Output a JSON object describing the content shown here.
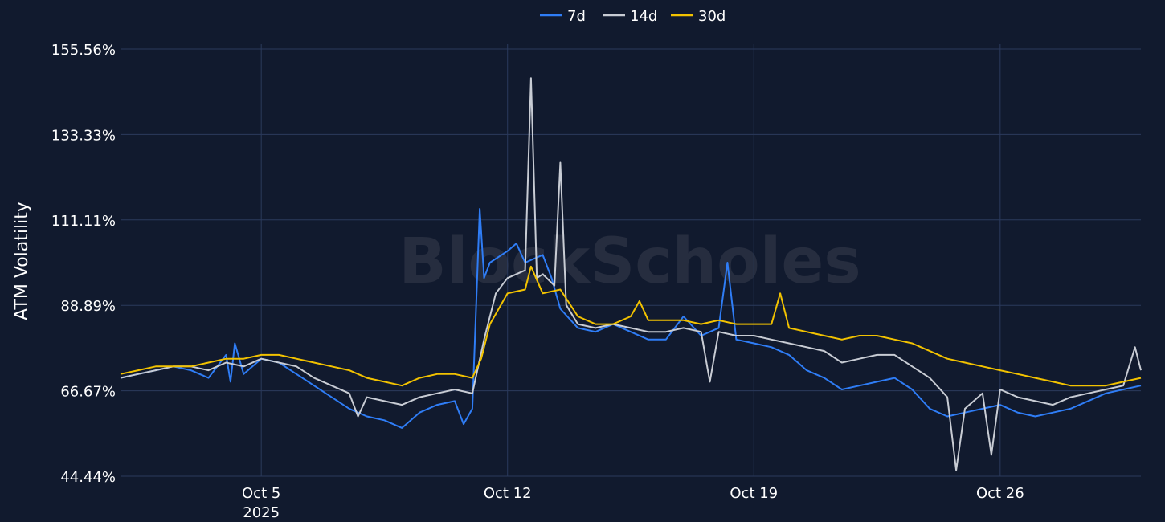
{
  "chart_data": {
    "type": "line",
    "title": "",
    "xlabel": "",
    "ylabel": "ATM Volatility",
    "watermark": "BlockScholes",
    "x_range": [
      "2025-10-01T00:00",
      "2025-10-30T00:00"
    ],
    "ylim": [
      44.44,
      155.56
    ],
    "y_ticks": [
      44.44,
      66.67,
      88.89,
      111.11,
      133.33,
      155.56
    ],
    "y_tick_labels": [
      "44.44%",
      "66.67%",
      "88.89%",
      "111.11%",
      "133.33%",
      "155.56%"
    ],
    "x_ticks": [
      {
        "date": "2025-10-05T00:00",
        "label": "Oct 5",
        "sublabel": "2025"
      },
      {
        "date": "2025-10-12T00:00",
        "label": "Oct 12",
        "sublabel": ""
      },
      {
        "date": "2025-10-19T00:00",
        "label": "Oct 19",
        "sublabel": ""
      },
      {
        "date": "2025-10-26T00:00",
        "label": "Oct 26",
        "sublabel": ""
      }
    ],
    "grid": true,
    "legend_position": "top-center",
    "series": [
      {
        "name": "7d",
        "color": "#2f7df6",
        "points": [
          [
            "2025-10-01T00:00",
            70
          ],
          [
            "2025-10-01T12:00",
            71
          ],
          [
            "2025-10-02T00:00",
            72
          ],
          [
            "2025-10-02T12:00",
            73
          ],
          [
            "2025-10-03T00:00",
            72
          ],
          [
            "2025-10-03T12:00",
            70
          ],
          [
            "2025-10-04T00:00",
            76
          ],
          [
            "2025-10-04T03:00",
            69
          ],
          [
            "2025-10-04T06:00",
            79
          ],
          [
            "2025-10-04T12:00",
            71
          ],
          [
            "2025-10-05T00:00",
            75
          ],
          [
            "2025-10-05T12:00",
            74
          ],
          [
            "2025-10-06T00:00",
            71
          ],
          [
            "2025-10-06T12:00",
            68
          ],
          [
            "2025-10-07T00:00",
            65
          ],
          [
            "2025-10-07T12:00",
            62
          ],
          [
            "2025-10-08T00:00",
            60
          ],
          [
            "2025-10-08T12:00",
            59
          ],
          [
            "2025-10-09T00:00",
            57
          ],
          [
            "2025-10-09T12:00",
            61
          ],
          [
            "2025-10-10T00:00",
            63
          ],
          [
            "2025-10-10T12:00",
            64
          ],
          [
            "2025-10-10T18:00",
            58
          ],
          [
            "2025-10-11T00:00",
            62
          ],
          [
            "2025-10-11T05:00",
            114
          ],
          [
            "2025-10-11T08:00",
            96
          ],
          [
            "2025-10-11T12:00",
            100
          ],
          [
            "2025-10-12T00:00",
            103
          ],
          [
            "2025-10-12T06:00",
            105
          ],
          [
            "2025-10-12T12:00",
            100
          ],
          [
            "2025-10-13T00:00",
            102
          ],
          [
            "2025-10-13T06:00",
            96
          ],
          [
            "2025-10-13T12:00",
            88
          ],
          [
            "2025-10-14T00:00",
            83
          ],
          [
            "2025-10-14T12:00",
            82
          ],
          [
            "2025-10-15T00:00",
            84
          ],
          [
            "2025-10-15T12:00",
            82
          ],
          [
            "2025-10-16T00:00",
            80
          ],
          [
            "2025-10-16T12:00",
            80
          ],
          [
            "2025-10-17T00:00",
            86
          ],
          [
            "2025-10-17T12:00",
            81
          ],
          [
            "2025-10-18T00:00",
            83
          ],
          [
            "2025-10-18T06:00",
            100
          ],
          [
            "2025-10-18T12:00",
            80
          ],
          [
            "2025-10-19T00:00",
            79
          ],
          [
            "2025-10-19T12:00",
            78
          ],
          [
            "2025-10-20T00:00",
            76
          ],
          [
            "2025-10-20T12:00",
            72
          ],
          [
            "2025-10-21T00:00",
            70
          ],
          [
            "2025-10-21T12:00",
            67
          ],
          [
            "2025-10-22T00:00",
            68
          ],
          [
            "2025-10-22T12:00",
            69
          ],
          [
            "2025-10-23T00:00",
            70
          ],
          [
            "2025-10-23T12:00",
            67
          ],
          [
            "2025-10-24T00:00",
            62
          ],
          [
            "2025-10-24T12:00",
            60
          ],
          [
            "2025-10-25T00:00",
            61
          ],
          [
            "2025-10-25T12:00",
            62
          ],
          [
            "2025-10-26T00:00",
            63
          ],
          [
            "2025-10-26T12:00",
            61
          ],
          [
            "2025-10-27T00:00",
            60
          ],
          [
            "2025-10-27T12:00",
            61
          ],
          [
            "2025-10-28T00:00",
            62
          ],
          [
            "2025-10-28T12:00",
            64
          ],
          [
            "2025-10-29T00:00",
            66
          ],
          [
            "2025-10-29T12:00",
            67
          ],
          [
            "2025-10-30T00:00",
            68
          ]
        ]
      },
      {
        "name": "14d",
        "color": "#c8ccd4",
        "points": [
          [
            "2025-10-01T00:00",
            70
          ],
          [
            "2025-10-01T12:00",
            71
          ],
          [
            "2025-10-02T00:00",
            72
          ],
          [
            "2025-10-02T12:00",
            73
          ],
          [
            "2025-10-03T00:00",
            73
          ],
          [
            "2025-10-03T12:00",
            72
          ],
          [
            "2025-10-04T00:00",
            74
          ],
          [
            "2025-10-04T12:00",
            73
          ],
          [
            "2025-10-05T00:00",
            75
          ],
          [
            "2025-10-05T12:00",
            74
          ],
          [
            "2025-10-06T00:00",
            73
          ],
          [
            "2025-10-06T12:00",
            70
          ],
          [
            "2025-10-07T00:00",
            68
          ],
          [
            "2025-10-07T12:00",
            66
          ],
          [
            "2025-10-07T18:00",
            60
          ],
          [
            "2025-10-08T00:00",
            65
          ],
          [
            "2025-10-08T12:00",
            64
          ],
          [
            "2025-10-09T00:00",
            63
          ],
          [
            "2025-10-09T12:00",
            65
          ],
          [
            "2025-10-10T00:00",
            66
          ],
          [
            "2025-10-10T12:00",
            67
          ],
          [
            "2025-10-11T00:00",
            66
          ],
          [
            "2025-10-11T08:00",
            80
          ],
          [
            "2025-10-11T16:00",
            92
          ],
          [
            "2025-10-12T00:00",
            96
          ],
          [
            "2025-10-12T12:00",
            98
          ],
          [
            "2025-10-12T16:00",
            148
          ],
          [
            "2025-10-12T20:00",
            96
          ],
          [
            "2025-10-13T00:00",
            97
          ],
          [
            "2025-10-13T08:00",
            94
          ],
          [
            "2025-10-13T12:00",
            126
          ],
          [
            "2025-10-13T16:00",
            89
          ],
          [
            "2025-10-14T00:00",
            84
          ],
          [
            "2025-10-14T12:00",
            83
          ],
          [
            "2025-10-15T00:00",
            84
          ],
          [
            "2025-10-15T12:00",
            83
          ],
          [
            "2025-10-16T00:00",
            82
          ],
          [
            "2025-10-16T12:00",
            82
          ],
          [
            "2025-10-17T00:00",
            83
          ],
          [
            "2025-10-17T12:00",
            82
          ],
          [
            "2025-10-17T18:00",
            69
          ],
          [
            "2025-10-18T00:00",
            82
          ],
          [
            "2025-10-18T12:00",
            81
          ],
          [
            "2025-10-19T00:00",
            81
          ],
          [
            "2025-10-19T12:00",
            80
          ],
          [
            "2025-10-20T00:00",
            79
          ],
          [
            "2025-10-20T12:00",
            78
          ],
          [
            "2025-10-21T00:00",
            77
          ],
          [
            "2025-10-21T12:00",
            74
          ],
          [
            "2025-10-22T00:00",
            75
          ],
          [
            "2025-10-22T12:00",
            76
          ],
          [
            "2025-10-23T00:00",
            76
          ],
          [
            "2025-10-23T12:00",
            73
          ],
          [
            "2025-10-24T00:00",
            70
          ],
          [
            "2025-10-24T12:00",
            65
          ],
          [
            "2025-10-24T18:00",
            46
          ],
          [
            "2025-10-25T00:00",
            62
          ],
          [
            "2025-10-25T12:00",
            66
          ],
          [
            "2025-10-25T18:00",
            50
          ],
          [
            "2025-10-26T00:00",
            67
          ],
          [
            "2025-10-26T12:00",
            65
          ],
          [
            "2025-10-27T00:00",
            64
          ],
          [
            "2025-10-27T12:00",
            63
          ],
          [
            "2025-10-28T00:00",
            65
          ],
          [
            "2025-10-28T12:00",
            66
          ],
          [
            "2025-10-29T00:00",
            67
          ],
          [
            "2025-10-29T12:00",
            68
          ],
          [
            "2025-10-29T20:00",
            78
          ],
          [
            "2025-10-30T00:00",
            72
          ]
        ]
      },
      {
        "name": "30d",
        "color": "#f2c200",
        "points": [
          [
            "2025-10-01T00:00",
            71
          ],
          [
            "2025-10-01T12:00",
            72
          ],
          [
            "2025-10-02T00:00",
            73
          ],
          [
            "2025-10-02T12:00",
            73
          ],
          [
            "2025-10-03T00:00",
            73
          ],
          [
            "2025-10-03T12:00",
            74
          ],
          [
            "2025-10-04T00:00",
            75
          ],
          [
            "2025-10-04T12:00",
            75
          ],
          [
            "2025-10-05T00:00",
            76
          ],
          [
            "2025-10-05T12:00",
            76
          ],
          [
            "2025-10-06T00:00",
            75
          ],
          [
            "2025-10-06T12:00",
            74
          ],
          [
            "2025-10-07T00:00",
            73
          ],
          [
            "2025-10-07T12:00",
            72
          ],
          [
            "2025-10-08T00:00",
            70
          ],
          [
            "2025-10-08T12:00",
            69
          ],
          [
            "2025-10-09T00:00",
            68
          ],
          [
            "2025-10-09T12:00",
            70
          ],
          [
            "2025-10-10T00:00",
            71
          ],
          [
            "2025-10-10T12:00",
            71
          ],
          [
            "2025-10-11T00:00",
            70
          ],
          [
            "2025-10-11T06:00",
            75
          ],
          [
            "2025-10-11T12:00",
            84
          ],
          [
            "2025-10-12T00:00",
            92
          ],
          [
            "2025-10-12T12:00",
            93
          ],
          [
            "2025-10-12T16:00",
            99
          ],
          [
            "2025-10-13T00:00",
            92
          ],
          [
            "2025-10-13T12:00",
            93
          ],
          [
            "2025-10-14T00:00",
            86
          ],
          [
            "2025-10-14T12:00",
            84
          ],
          [
            "2025-10-15T00:00",
            84
          ],
          [
            "2025-10-15T12:00",
            86
          ],
          [
            "2025-10-15T18:00",
            90
          ],
          [
            "2025-10-16T00:00",
            85
          ],
          [
            "2025-10-16T12:00",
            85
          ],
          [
            "2025-10-17T00:00",
            85
          ],
          [
            "2025-10-17T12:00",
            84
          ],
          [
            "2025-10-18T00:00",
            85
          ],
          [
            "2025-10-18T12:00",
            84
          ],
          [
            "2025-10-19T00:00",
            84
          ],
          [
            "2025-10-19T12:00",
            84
          ],
          [
            "2025-10-19T18:00",
            92
          ],
          [
            "2025-10-20T00:00",
            83
          ],
          [
            "2025-10-20T12:00",
            82
          ],
          [
            "2025-10-21T00:00",
            81
          ],
          [
            "2025-10-21T12:00",
            80
          ],
          [
            "2025-10-22T00:00",
            81
          ],
          [
            "2025-10-22T12:00",
            81
          ],
          [
            "2025-10-23T00:00",
            80
          ],
          [
            "2025-10-23T12:00",
            79
          ],
          [
            "2025-10-24T00:00",
            77
          ],
          [
            "2025-10-24T12:00",
            75
          ],
          [
            "2025-10-25T00:00",
            74
          ],
          [
            "2025-10-25T12:00",
            73
          ],
          [
            "2025-10-26T00:00",
            72
          ],
          [
            "2025-10-26T12:00",
            71
          ],
          [
            "2025-10-27T00:00",
            70
          ],
          [
            "2025-10-27T12:00",
            69
          ],
          [
            "2025-10-28T00:00",
            68
          ],
          [
            "2025-10-28T12:00",
            68
          ],
          [
            "2025-10-29T00:00",
            68
          ],
          [
            "2025-10-29T12:00",
            69
          ],
          [
            "2025-10-30T00:00",
            70
          ]
        ]
      }
    ]
  }
}
